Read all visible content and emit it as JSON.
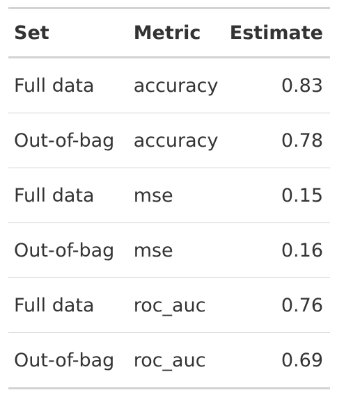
{
  "table": {
    "headers": {
      "set": "Set",
      "metric": "Metric",
      "estimate": "Estimate"
    },
    "rows": [
      {
        "set": "Full data",
        "metric": "accuracy",
        "estimate": "0.83"
      },
      {
        "set": "Out-of-bag",
        "metric": "accuracy",
        "estimate": "0.78"
      },
      {
        "set": "Full data",
        "metric": "mse",
        "estimate": "0.15"
      },
      {
        "set": "Out-of-bag",
        "metric": "mse",
        "estimate": "0.16"
      },
      {
        "set": "Full data",
        "metric": "roc_auc",
        "estimate": "0.76"
      },
      {
        "set": "Out-of-bag",
        "metric": "roc_auc",
        "estimate": "0.69"
      }
    ]
  }
}
